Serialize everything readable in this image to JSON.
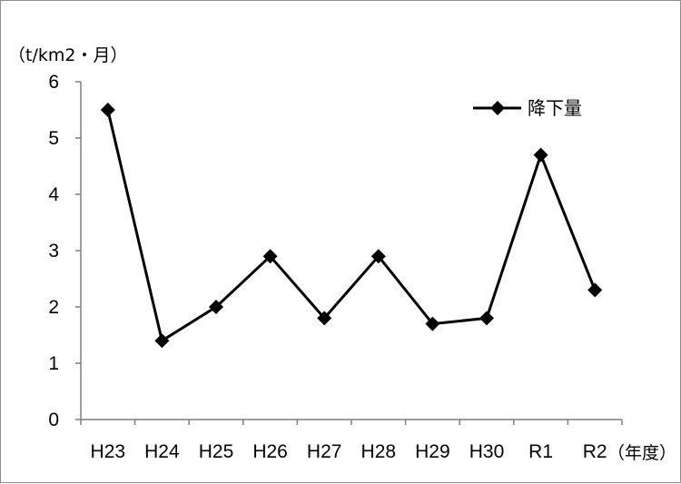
{
  "chart_data": {
    "type": "line",
    "categories": [
      "H23",
      "H24",
      "H25",
      "H26",
      "H27",
      "H28",
      "H29",
      "H30",
      "R1",
      "R2"
    ],
    "series": [
      {
        "name": "降下量",
        "values": [
          5.5,
          1.4,
          2.0,
          2.9,
          1.8,
          2.9,
          1.7,
          1.8,
          4.7,
          2.3
        ],
        "color": "#000000",
        "marker": "diamond"
      }
    ],
    "ylabel": "（t/km2・月）",
    "xlabel": "（年度）",
    "ylim": [
      0,
      6
    ],
    "yticks": [
      "0",
      "1",
      "2",
      "3",
      "4",
      "5",
      "6"
    ],
    "grid": false,
    "legend_position": "top-right"
  }
}
